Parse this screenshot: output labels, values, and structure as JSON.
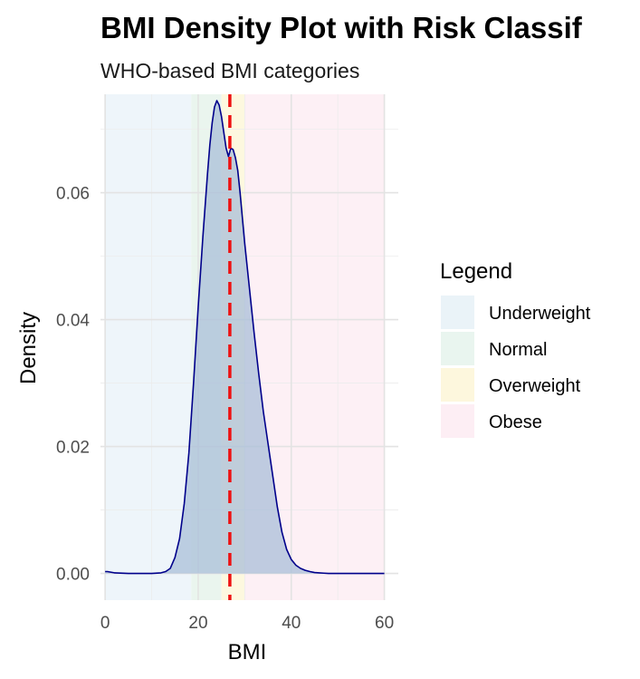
{
  "chart_data": {
    "type": "density",
    "title": "BMI Density Plot with Risk Classif",
    "subtitle": "WHO-based BMI categories",
    "xlabel": "BMI",
    "ylabel": "Density",
    "xlim": [
      -1,
      63
    ],
    "ylim": [
      -0.0042,
      0.0755
    ],
    "x_ticks": [
      0,
      20,
      40,
      60
    ],
    "x_tick_labels": [
      "0",
      "20",
      "40",
      "60"
    ],
    "y_ticks": [
      0.0,
      0.02,
      0.04,
      0.06
    ],
    "y_tick_labels": [
      "0.00",
      "0.02",
      "0.04",
      "0.06"
    ],
    "grid": true,
    "legend": {
      "title": "Legend",
      "placement": "right",
      "entries": [
        {
          "label": "Underweight",
          "color": "#eaf3f8"
        },
        {
          "label": "Normal",
          "color": "#e9f5ef"
        },
        {
          "label": "Overweight",
          "color": "#fdf7dd"
        },
        {
          "label": "Obese",
          "color": "#fdeef4"
        }
      ]
    },
    "bands": [
      {
        "name": "Underweight",
        "from": 0,
        "to": 18.5,
        "color": "#eef5fa"
      },
      {
        "name": "Normal",
        "from": 18.5,
        "to": 25,
        "color": "#eaf5ee"
      },
      {
        "name": "Overweight",
        "from": 25,
        "to": 30,
        "color": "#fdf8df"
      },
      {
        "name": "Obese",
        "from": 30,
        "to": 60,
        "color": "#fdf0f5"
      }
    ],
    "reference_line": {
      "x": 26.8,
      "color": "#ee1111",
      "style": "dashed"
    },
    "series": [
      {
        "name": "BMI density",
        "line_color": "#00008b",
        "fill_color": "#a9bfd8",
        "x": [
          0,
          0.5,
          2,
          5,
          10,
          12,
          13,
          14,
          15,
          16,
          17,
          18,
          19,
          20,
          21,
          22,
          22.5,
          23,
          23.5,
          24,
          24.5,
          25,
          25.5,
          26,
          26.5,
          27,
          27.5,
          28,
          28.5,
          29,
          29.5,
          30,
          31,
          32,
          33,
          34,
          35,
          36,
          37,
          38,
          39,
          40,
          41,
          42,
          43,
          44,
          45,
          46,
          47,
          48,
          50,
          55,
          60
        ],
        "y": [
          0.0003,
          0.0003,
          0.0001,
          0.0,
          0.0,
          0.0001,
          0.0003,
          0.0008,
          0.0025,
          0.0055,
          0.011,
          0.019,
          0.03,
          0.042,
          0.053,
          0.063,
          0.0675,
          0.071,
          0.0735,
          0.0745,
          0.0738,
          0.072,
          0.0695,
          0.067,
          0.0657,
          0.067,
          0.0668,
          0.0655,
          0.0635,
          0.06,
          0.056,
          0.052,
          0.045,
          0.038,
          0.0315,
          0.0255,
          0.0205,
          0.0155,
          0.0105,
          0.0065,
          0.0038,
          0.0022,
          0.0013,
          0.0008,
          0.0005,
          0.0003,
          0.00015,
          0.0001,
          5e-05,
          0.0,
          0.0,
          0.0,
          0.0
        ]
      }
    ]
  }
}
